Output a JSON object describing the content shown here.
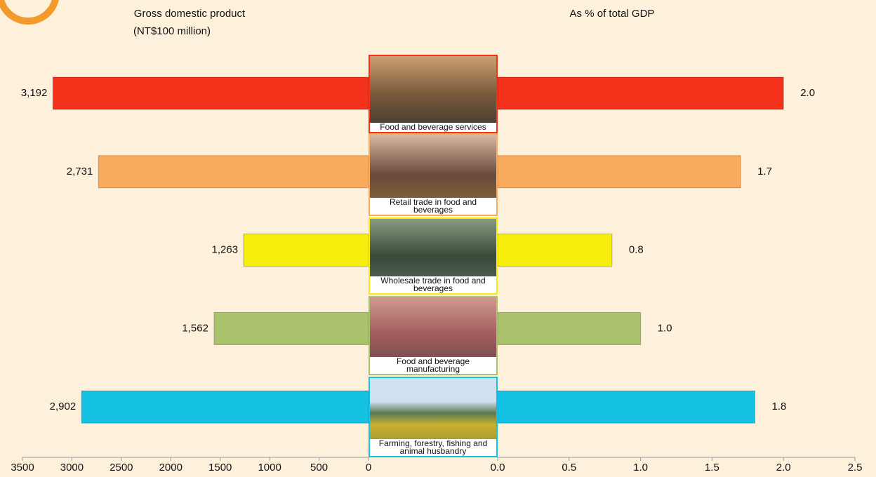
{
  "chart_data": [
    {
      "type": "hbar-left",
      "title": "Gross domestic product",
      "subtitle": "(NT$100 million)",
      "categories": [
        "Food and beverage services",
        "Retail trade in food and beverages",
        "Wholesale trade in food and beverages",
        "Food and beverage manufacturing",
        "Farming, forestry, fishing and animal husbandry"
      ],
      "values": [
        3192,
        2731,
        1263,
        1562,
        2902
      ],
      "value_labels": [
        "3,192",
        "2,731",
        "1,263",
        "1,562",
        "2,902"
      ],
      "colors": [
        "#f4311a",
        "#fbab5e",
        "#f6ee0c",
        "#a9c26b",
        "#16c2e3"
      ],
      "xlim": [
        0,
        3500
      ],
      "xticks": [
        0,
        500,
        1000,
        1500,
        2000,
        2500,
        3000,
        3500
      ]
    },
    {
      "type": "hbar-right",
      "title": "As % of total GDP",
      "values": [
        2.0,
        1.7,
        0.8,
        1.0,
        1.8
      ],
      "value_labels": [
        "2.0",
        "1.7",
        "0.8",
        "1.0",
        "1.8"
      ],
      "colors": [
        "#f4311a",
        "#fbab5e",
        "#f6ee0c",
        "#a9c26b",
        "#16c2e3"
      ],
      "xlim": [
        0,
        2.5
      ],
      "xticks": [
        {
          "value": 0,
          "label": "0.0"
        },
        0.5,
        {
          "value": 1,
          "label": "1.0"
        },
        1.5,
        {
          "value": 2,
          "label": "2.0"
        },
        2.5
      ]
    }
  ]
}
